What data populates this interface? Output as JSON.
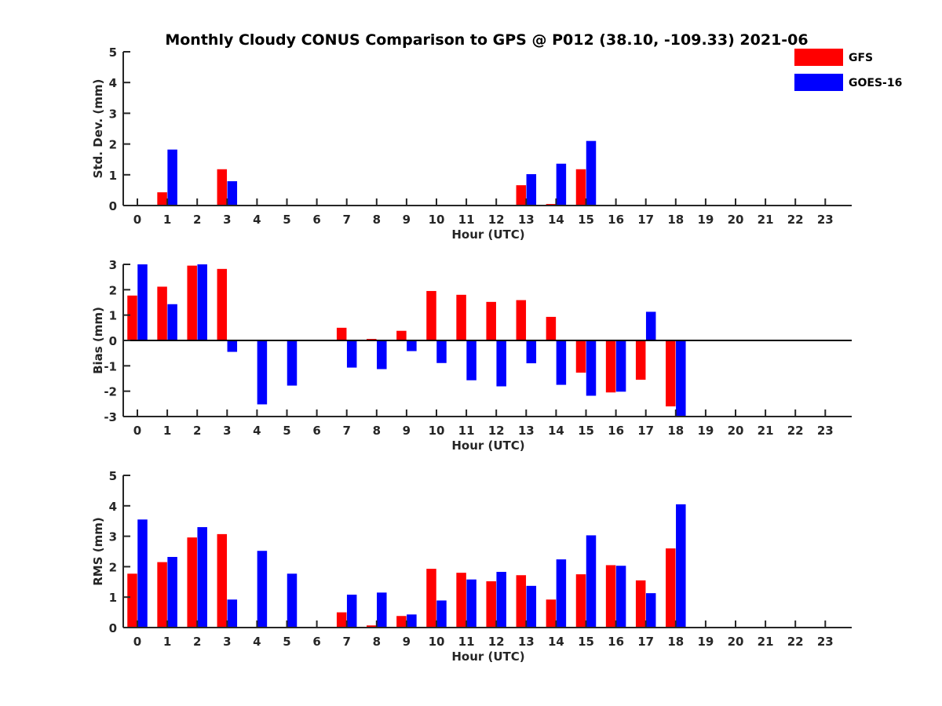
{
  "chart_data": {
    "title": "Monthly Cloudy CONUS Comparison to GPS @ P012 (38.10, -109.33) 2021-06",
    "legend": {
      "placement": "top-right",
      "entries": [
        {
          "name": "GFS",
          "color": "#ff0000"
        },
        {
          "name": "GOES-16",
          "color": "#0000ff"
        }
      ]
    },
    "panels": [
      {
        "type": "bar",
        "ylabel": "Std. Dev. (mm)",
        "xlabel": "Hour (UTC)",
        "ylim": [
          0,
          5
        ],
        "yticks": [
          0,
          1,
          2,
          3,
          4,
          5
        ],
        "categories": [
          "0",
          "1",
          "2",
          "3",
          "4",
          "5",
          "6",
          "7",
          "8",
          "9",
          "10",
          "11",
          "12",
          "13",
          "14",
          "15",
          "16",
          "17",
          "18",
          "19",
          "20",
          "21",
          "22",
          "23"
        ],
        "series": [
          {
            "name": "GFS",
            "color": "#ff0000",
            "values": [
              0,
              0.43,
              0,
              1.18,
              0,
              0,
              0,
              0,
              0,
              0,
              0,
              0,
              0,
              0.66,
              0.05,
              1.18,
              0,
              0,
              0,
              0,
              0,
              0,
              0,
              0
            ]
          },
          {
            "name": "GOES-16",
            "color": "#0000ff",
            "values": [
              0,
              1.82,
              0,
              0.79,
              0,
              0,
              0,
              0,
              0,
              0,
              0,
              0,
              0,
              1.02,
              1.36,
              2.1,
              0,
              0,
              0,
              0,
              0,
              0,
              0,
              0
            ]
          }
        ]
      },
      {
        "type": "bar",
        "ylabel": "Bias (mm)",
        "xlabel": "Hour (UTC)",
        "ylim": [
          -3,
          3
        ],
        "yticks": [
          -3,
          -2,
          -1,
          0,
          1,
          2,
          3
        ],
        "categories": [
          "0",
          "1",
          "2",
          "3",
          "4",
          "5",
          "6",
          "7",
          "8",
          "9",
          "10",
          "11",
          "12",
          "13",
          "14",
          "15",
          "16",
          "17",
          "18",
          "19",
          "20",
          "21",
          "22",
          "23"
        ],
        "series": [
          {
            "name": "GFS",
            "color": "#ff0000",
            "values": [
              1.77,
              2.12,
              2.95,
              2.82,
              0,
              0,
              0,
              0.5,
              0.06,
              0.38,
              1.95,
              1.8,
              1.52,
              1.59,
              0.93,
              -1.27,
              -2.05,
              -1.55,
              -2.6,
              0,
              0,
              0,
              0,
              0
            ]
          },
          {
            "name": "GOES-16",
            "color": "#0000ff",
            "values": [
              3.0,
              1.43,
              3.0,
              -0.45,
              -2.52,
              -1.78,
              0,
              -1.07,
              -1.13,
              -0.42,
              -0.89,
              -1.57,
              -1.81,
              -0.9,
              -1.75,
              -2.18,
              -2.02,
              1.13,
              -3.0,
              0,
              0,
              0,
              0,
              0
            ]
          }
        ]
      },
      {
        "type": "bar",
        "ylabel": "RMS (mm)",
        "xlabel": "Hour (UTC)",
        "ylim": [
          0,
          5
        ],
        "yticks": [
          0,
          1,
          2,
          3,
          4,
          5
        ],
        "categories": [
          "0",
          "1",
          "2",
          "3",
          "4",
          "5",
          "6",
          "7",
          "8",
          "9",
          "10",
          "11",
          "12",
          "13",
          "14",
          "15",
          "16",
          "17",
          "18",
          "19",
          "20",
          "21",
          "22",
          "23"
        ],
        "series": [
          {
            "name": "GFS",
            "color": "#ff0000",
            "values": [
              1.77,
              2.15,
              2.96,
              3.07,
              0,
              0,
              0,
              0.5,
              0.07,
              0.38,
              1.93,
              1.8,
              1.52,
              1.72,
              0.92,
              1.75,
              2.05,
              1.55,
              2.6,
              0,
              0,
              0,
              0,
              0
            ]
          },
          {
            "name": "GOES-16",
            "color": "#0000ff",
            "values": [
              3.55,
              2.32,
              3.3,
              0.92,
              2.52,
              1.77,
              0,
              1.08,
              1.15,
              0.43,
              0.89,
              1.58,
              1.83,
              1.37,
              2.24,
              3.03,
              2.03,
              1.13,
              4.05,
              0,
              0,
              0,
              0,
              0
            ]
          }
        ]
      }
    ]
  }
}
